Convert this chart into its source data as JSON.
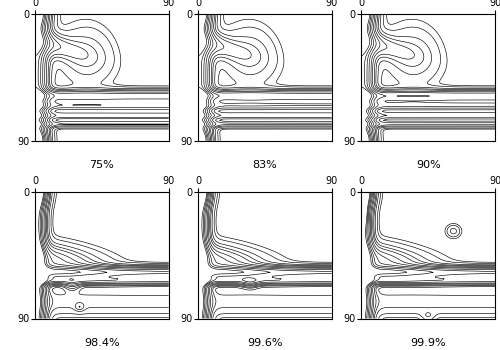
{
  "labels": [
    "75%",
    "83%",
    "90%",
    "98.4%",
    "99.6%",
    "99.9%"
  ],
  "levels": [
    1,
    2,
    4,
    6,
    8,
    11,
    14,
    18,
    22,
    26,
    30
  ],
  "figsize": [
    5.0,
    3.5
  ],
  "dpi": 100,
  "cr_reductions": [
    75,
    83,
    90
  ],
  "arb_reductions": [
    98.4,
    99.6,
    99.9
  ]
}
